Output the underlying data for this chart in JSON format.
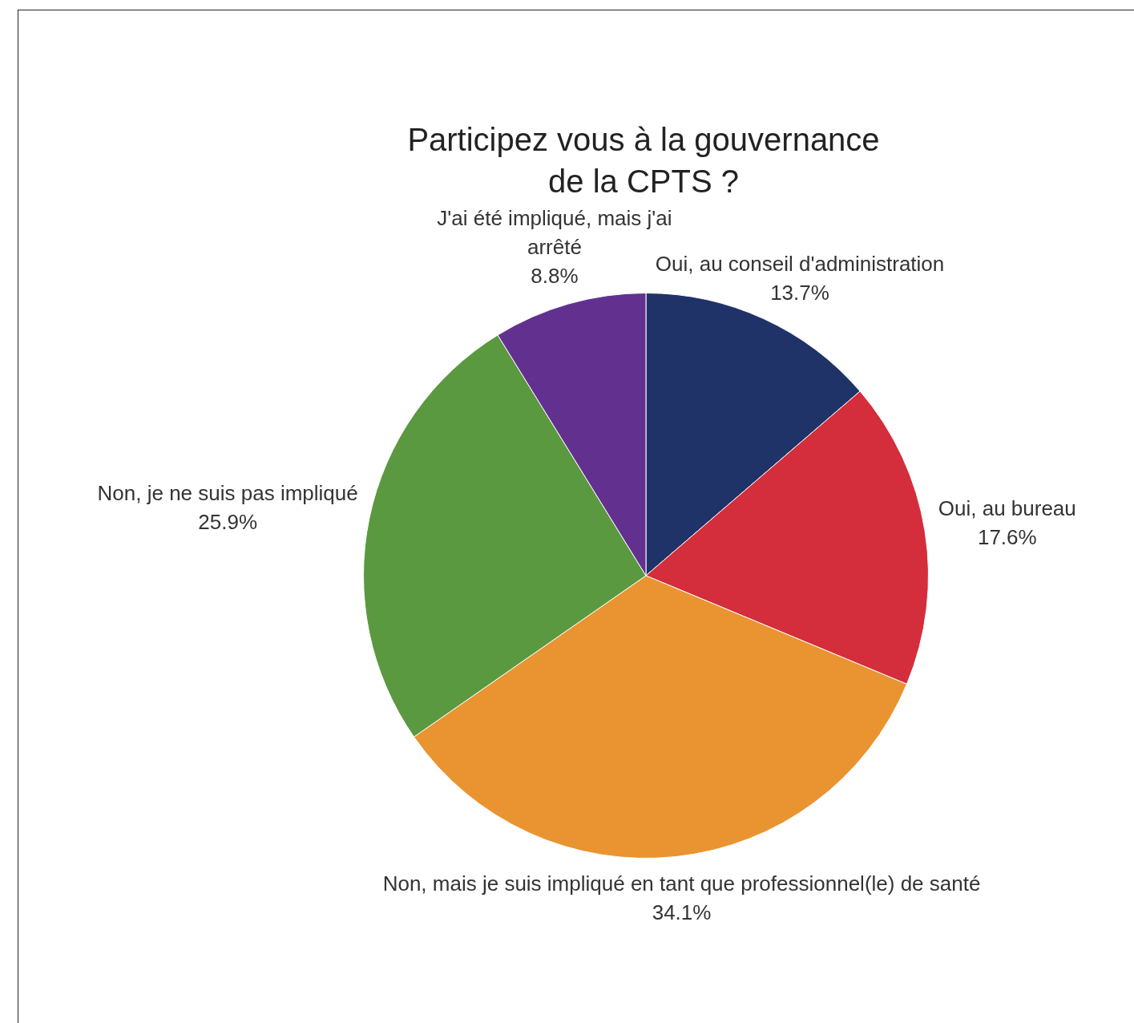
{
  "chart_data": {
    "type": "pie",
    "title": "Participez vous à la gouvernance de la CPTS ?",
    "categories": [
      "Oui, au conseil d'administration",
      "Oui, au bureau",
      "Non, mais je suis impliqué en tant que professionnel(le) de santé",
      "Non, je ne suis pas impliqué",
      "J'ai été impliqué, mais j'ai arrêté"
    ],
    "values": [
      13.7,
      17.6,
      34.1,
      25.9,
      8.8
    ],
    "colors": [
      "#1f3368",
      "#d42d3c",
      "#e99431",
      "#5a9940",
      "#623190"
    ],
    "value_labels": [
      "13.7%",
      "17.6%",
      "34.1%",
      "25.9%",
      "8.8%"
    ]
  }
}
